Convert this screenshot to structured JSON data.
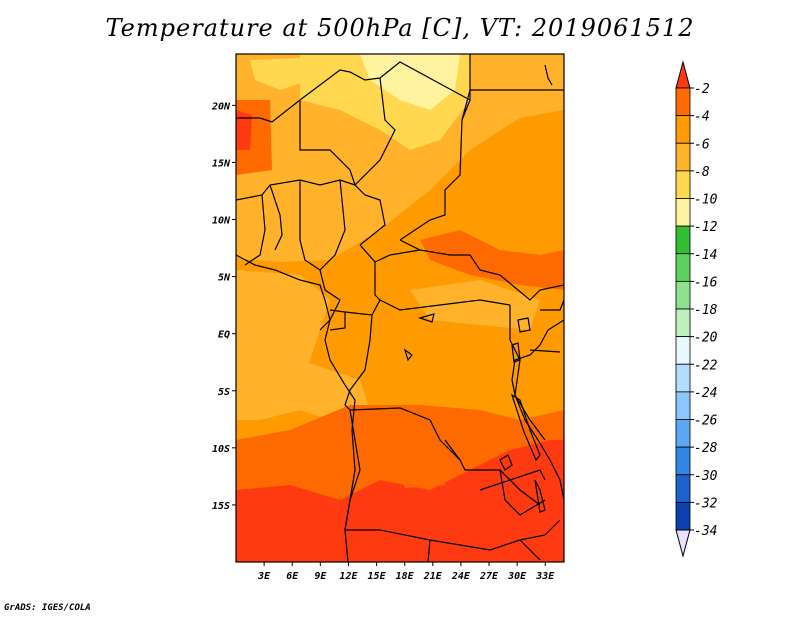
{
  "title": "Temperature at 500hPa [C], VT: 2019061512",
  "credit": "GrADS: IGES/COLA",
  "map": {
    "lon_range": [
      0,
      35
    ],
    "lat_range": [
      -20,
      24.5
    ],
    "lon_ticks": [
      "3E",
      "6E",
      "9E",
      "12E",
      "15E",
      "18E",
      "21E",
      "24E",
      "27E",
      "30E",
      "33E"
    ],
    "lon_values": [
      3,
      6,
      9,
      12,
      15,
      18,
      21,
      24,
      27,
      30,
      33
    ],
    "lat_ticks": [
      "20N",
      "15N",
      "10N",
      "5N",
      "EQ",
      "5S",
      "10S",
      "15S"
    ],
    "lat_values": [
      20,
      15,
      10,
      5,
      0,
      -5,
      -10,
      -15
    ]
  },
  "colorbar": {
    "labels": [
      "-2",
      "-4",
      "-6",
      "-8",
      "-10",
      "-12",
      "-14",
      "-16",
      "-18",
      "-20",
      "-22",
      "-24",
      "-26",
      "-28",
      "-30",
      "-32",
      "-34"
    ],
    "colors": [
      "#ff3a10",
      "#ff6a00",
      "#ff9a00",
      "#ffb22a",
      "#ffd84f",
      "#fff3a0",
      "#30bf30",
      "#5cd35c",
      "#8ee28e",
      "#bdf0bd",
      "#e8f8ff",
      "#b3dcff",
      "#8cc6ff",
      "#5aa8f5",
      "#3087e6",
      "#1a62cc",
      "#0c3fb0",
      "#0a1a80"
    ],
    "arrow_top_color": "#ff3a10",
    "arrow_bottom_color": "#e8e0ff"
  }
}
